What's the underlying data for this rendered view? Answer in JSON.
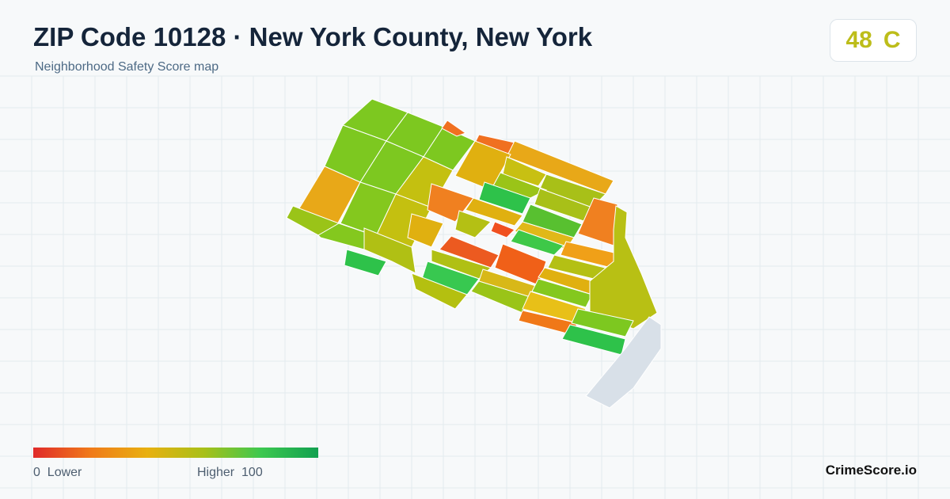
{
  "header": {
    "title": "ZIP Code 10128 · New York County, New York",
    "subtitle": "Neighborhood Safety Score map"
  },
  "score": {
    "value": 48,
    "grade": "C"
  },
  "legend": {
    "min": 0,
    "min_label": "Lower",
    "max_label": "Higher",
    "max": 100
  },
  "brand": "CrimeScore.io"
}
